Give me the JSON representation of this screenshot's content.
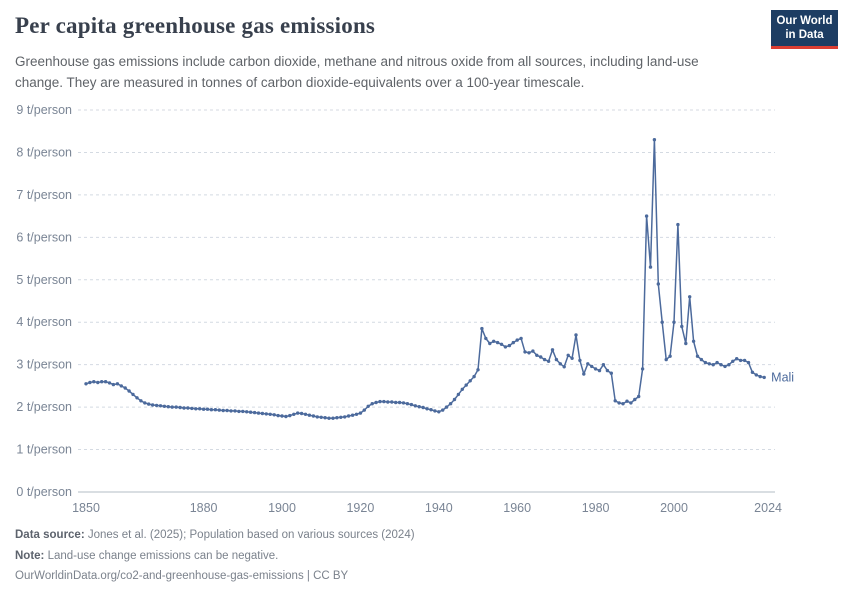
{
  "header": {
    "title": "Per capita greenhouse gas emissions",
    "logo_line1": "Our World",
    "logo_line2": "in Data"
  },
  "subtitle": "Greenhouse gas emissions include carbon dioxide, methane and nitrous oxide from all sources, including land-use change. They are measured in tonnes of carbon dioxide-equivalents over a 100-year timescale.",
  "chart_data": {
    "type": "line",
    "title": "Per capita greenhouse gas emissions",
    "xlabel": "",
    "ylabel": "t/person",
    "ylim": [
      0,
      9
    ],
    "xlim": [
      1850,
      2024
    ],
    "grid": "horizontal-dashed",
    "legend": "end-of-line-label",
    "yticks": [
      {
        "value": 0,
        "label": "0 t/person"
      },
      {
        "value": 1,
        "label": "1 t/person"
      },
      {
        "value": 2,
        "label": "2 t/person"
      },
      {
        "value": 3,
        "label": "3 t/person"
      },
      {
        "value": 4,
        "label": "4 t/person"
      },
      {
        "value": 5,
        "label": "5 t/person"
      },
      {
        "value": 6,
        "label": "6 t/person"
      },
      {
        "value": 7,
        "label": "7 t/person"
      },
      {
        "value": 8,
        "label": "8 t/person"
      },
      {
        "value": 9,
        "label": "9 t/person"
      }
    ],
    "xticks": [
      1850,
      1880,
      1900,
      1920,
      1940,
      1960,
      1980,
      2000,
      2024
    ],
    "series": [
      {
        "name": "Mali",
        "color": "#4c6a9c",
        "points": [
          [
            1850,
            2.55
          ],
          [
            1851,
            2.58
          ],
          [
            1852,
            2.6
          ],
          [
            1853,
            2.58
          ],
          [
            1854,
            2.6
          ],
          [
            1855,
            2.6
          ],
          [
            1856,
            2.57
          ],
          [
            1857,
            2.53
          ],
          [
            1858,
            2.55
          ],
          [
            1859,
            2.5
          ],
          [
            1860,
            2.45
          ],
          [
            1861,
            2.38
          ],
          [
            1862,
            2.3
          ],
          [
            1863,
            2.22
          ],
          [
            1864,
            2.15
          ],
          [
            1865,
            2.1
          ],
          [
            1866,
            2.07
          ],
          [
            1867,
            2.05
          ],
          [
            1868,
            2.04
          ],
          [
            1869,
            2.03
          ],
          [
            1870,
            2.02
          ],
          [
            1871,
            2.01
          ],
          [
            1872,
            2.0
          ],
          [
            1873,
            2.0
          ],
          [
            1874,
            1.99
          ],
          [
            1875,
            1.98
          ],
          [
            1876,
            1.98
          ],
          [
            1877,
            1.97
          ],
          [
            1878,
            1.96
          ],
          [
            1879,
            1.96
          ],
          [
            1880,
            1.95
          ],
          [
            1881,
            1.95
          ],
          [
            1882,
            1.94
          ],
          [
            1883,
            1.94
          ],
          [
            1884,
            1.93
          ],
          [
            1885,
            1.92
          ],
          [
            1886,
            1.92
          ],
          [
            1887,
            1.91
          ],
          [
            1888,
            1.91
          ],
          [
            1889,
            1.9
          ],
          [
            1890,
            1.9
          ],
          [
            1891,
            1.89
          ],
          [
            1892,
            1.88
          ],
          [
            1893,
            1.87
          ],
          [
            1894,
            1.86
          ],
          [
            1895,
            1.85
          ],
          [
            1896,
            1.84
          ],
          [
            1897,
            1.83
          ],
          [
            1898,
            1.82
          ],
          [
            1899,
            1.8
          ],
          [
            1900,
            1.79
          ],
          [
            1901,
            1.78
          ],
          [
            1902,
            1.8
          ],
          [
            1903,
            1.83
          ],
          [
            1904,
            1.86
          ],
          [
            1905,
            1.85
          ],
          [
            1906,
            1.83
          ],
          [
            1907,
            1.81
          ],
          [
            1908,
            1.79
          ],
          [
            1909,
            1.77
          ],
          [
            1910,
            1.76
          ],
          [
            1911,
            1.75
          ],
          [
            1912,
            1.74
          ],
          [
            1913,
            1.74
          ],
          [
            1914,
            1.75
          ],
          [
            1915,
            1.76
          ],
          [
            1916,
            1.77
          ],
          [
            1917,
            1.79
          ],
          [
            1918,
            1.81
          ],
          [
            1919,
            1.83
          ],
          [
            1920,
            1.86
          ],
          [
            1921,
            1.93
          ],
          [
            1922,
            2.02
          ],
          [
            1923,
            2.08
          ],
          [
            1924,
            2.11
          ],
          [
            1925,
            2.13
          ],
          [
            1926,
            2.13
          ],
          [
            1927,
            2.12
          ],
          [
            1928,
            2.12
          ],
          [
            1929,
            2.11
          ],
          [
            1930,
            2.11
          ],
          [
            1931,
            2.1
          ],
          [
            1932,
            2.08
          ],
          [
            1933,
            2.06
          ],
          [
            1934,
            2.03
          ],
          [
            1935,
            2.01
          ],
          [
            1936,
            1.99
          ],
          [
            1937,
            1.96
          ],
          [
            1938,
            1.94
          ],
          [
            1939,
            1.91
          ],
          [
            1940,
            1.89
          ],
          [
            1941,
            1.93
          ],
          [
            1942,
            2.0
          ],
          [
            1943,
            2.08
          ],
          [
            1944,
            2.18
          ],
          [
            1945,
            2.3
          ],
          [
            1946,
            2.42
          ],
          [
            1947,
            2.52
          ],
          [
            1948,
            2.62
          ],
          [
            1949,
            2.72
          ],
          [
            1950,
            2.88
          ],
          [
            1951,
            3.85
          ],
          [
            1952,
            3.62
          ],
          [
            1953,
            3.5
          ],
          [
            1954,
            3.55
          ],
          [
            1955,
            3.52
          ],
          [
            1956,
            3.48
          ],
          [
            1957,
            3.42
          ],
          [
            1958,
            3.45
          ],
          [
            1959,
            3.52
          ],
          [
            1960,
            3.58
          ],
          [
            1961,
            3.62
          ],
          [
            1962,
            3.3
          ],
          [
            1963,
            3.28
          ],
          [
            1964,
            3.32
          ],
          [
            1965,
            3.22
          ],
          [
            1966,
            3.18
          ],
          [
            1967,
            3.12
          ],
          [
            1968,
            3.08
          ],
          [
            1969,
            3.35
          ],
          [
            1970,
            3.12
          ],
          [
            1971,
            3.02
          ],
          [
            1972,
            2.95
          ],
          [
            1973,
            3.22
          ],
          [
            1974,
            3.15
          ],
          [
            1975,
            3.7
          ],
          [
            1976,
            3.1
          ],
          [
            1977,
            2.78
          ],
          [
            1978,
            3.02
          ],
          [
            1979,
            2.96
          ],
          [
            1980,
            2.9
          ],
          [
            1981,
            2.86
          ],
          [
            1982,
            3.0
          ],
          [
            1983,
            2.86
          ],
          [
            1984,
            2.8
          ],
          [
            1985,
            2.15
          ],
          [
            1986,
            2.1
          ],
          [
            1987,
            2.08
          ],
          [
            1988,
            2.14
          ],
          [
            1989,
            2.1
          ],
          [
            1990,
            2.18
          ],
          [
            1991,
            2.25
          ],
          [
            1992,
            2.9
          ],
          [
            1993,
            6.5
          ],
          [
            1994,
            5.3
          ],
          [
            1995,
            8.3
          ],
          [
            1996,
            4.9
          ],
          [
            1997,
            4.0
          ],
          [
            1998,
            3.12
          ],
          [
            1999,
            3.2
          ],
          [
            2000,
            4.0
          ],
          [
            2001,
            6.3
          ],
          [
            2002,
            3.9
          ],
          [
            2003,
            3.5
          ],
          [
            2004,
            4.6
          ],
          [
            2005,
            3.55
          ],
          [
            2006,
            3.2
          ],
          [
            2007,
            3.12
          ],
          [
            2008,
            3.05
          ],
          [
            2009,
            3.02
          ],
          [
            2010,
            3.0
          ],
          [
            2011,
            3.05
          ],
          [
            2012,
            3.0
          ],
          [
            2013,
            2.96
          ],
          [
            2014,
            3.0
          ],
          [
            2015,
            3.08
          ],
          [
            2016,
            3.14
          ],
          [
            2017,
            3.1
          ],
          [
            2018,
            3.1
          ],
          [
            2019,
            3.05
          ],
          [
            2020,
            2.82
          ],
          [
            2021,
            2.76
          ],
          [
            2022,
            2.72
          ],
          [
            2023,
            2.7
          ]
        ]
      }
    ]
  },
  "footer": {
    "datasource_label": "Data source:",
    "datasource_text": " Jones et al. (2025); Population based on various sources (2024)",
    "note_label": "Note:",
    "note_text": " Land-use change emissions can be negative.",
    "url_text": "OurWorldinData.org/co2-and-greenhouse-gas-emissions | CC BY"
  },
  "colors": {
    "line": "#4c6a9c",
    "grid": "#d4dae2",
    "axis_zero": "#b3bcc6",
    "logo_bg": "#1d3d63",
    "logo_accent": "#dc3e32"
  }
}
